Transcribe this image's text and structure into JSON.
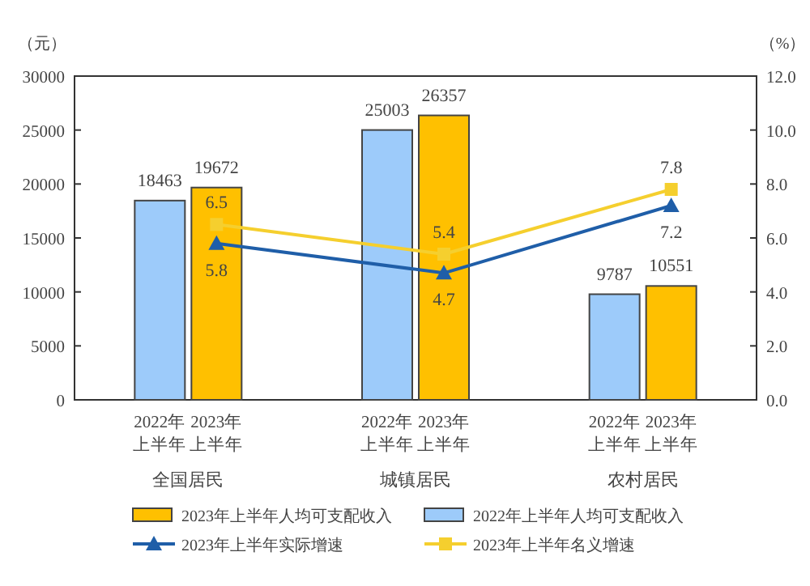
{
  "chart_data": {
    "type": "bar",
    "ylabel": "（元）",
    "y2label": "（%）",
    "categories": [
      "全国居民",
      "城镇居民",
      "农村居民"
    ],
    "series": [
      {
        "name": "2022年上半年人均可支配收入",
        "color": "#9dcbfa",
        "values": [
          18463,
          25003,
          9787
        ]
      },
      {
        "name": "2023年上半年人均可支配收入",
        "color": "#ffc000",
        "values": [
          19672,
          26357,
          10551
        ]
      },
      {
        "name": "2023年上半年名义增速",
        "type": "line",
        "axis": "y2",
        "marker": "square",
        "color": "#f5cf2e",
        "values": [
          6.5,
          5.4,
          7.8
        ]
      },
      {
        "name": "2023年上半年实际增速",
        "type": "line",
        "axis": "y2",
        "marker": "triangle",
        "color": "#1f5ea8",
        "values": [
          5.8,
          4.7,
          7.2
        ]
      }
    ],
    "ylim": [
      0,
      30000
    ],
    "yticks": [
      0,
      5000,
      10000,
      15000,
      20000,
      25000,
      30000
    ],
    "y2lim": [
      0,
      12
    ],
    "y2ticks": [
      {
        "value": 0,
        "label": "0.0"
      },
      {
        "value": 2,
        "label": "2.0"
      },
      {
        "value": 4,
        "label": "4.0"
      },
      {
        "value": 6,
        "label": "6.0"
      },
      {
        "value": 8,
        "label": "8.0"
      },
      {
        "value": 10,
        "label": "10.0"
      },
      {
        "value": 12,
        "label": "12.0"
      }
    ],
    "annotations": [
      "2022年上半年",
      "2023年上半年",
      "2022年上半年",
      "2023年上半年",
      "2022年上半年",
      "2023年上半年"
    ],
    "data_labels": true,
    "legend": "bottom",
    "grid": false
  }
}
